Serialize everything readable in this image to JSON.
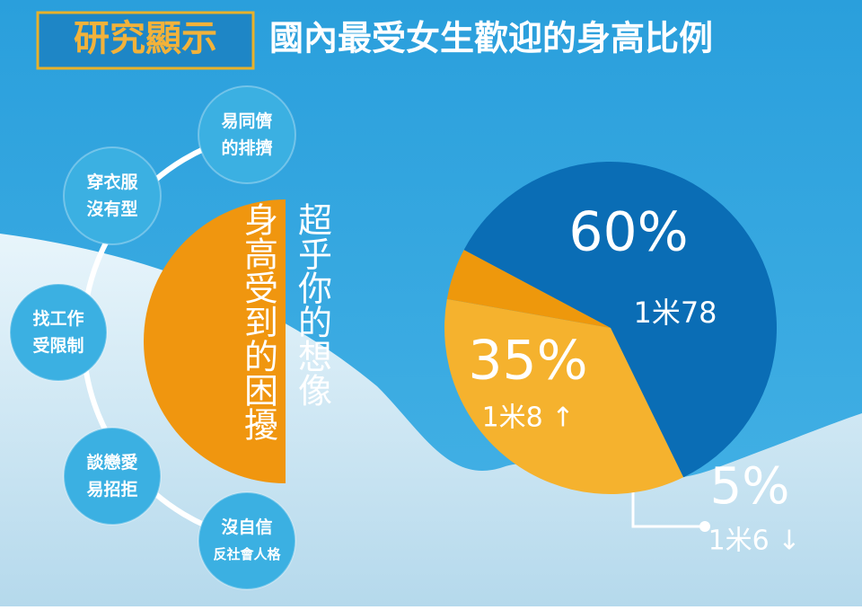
{
  "header": {
    "badge": "研究顯示",
    "title": "國內最受女生歡迎的身高比例"
  },
  "bubbles": [
    [
      "易同儕",
      "的排擠"
    ],
    [
      "穿衣服",
      "沒有型"
    ],
    [
      "找工作",
      "受限制"
    ],
    [
      "談戀愛",
      "易招拒"
    ],
    [
      "沒自信",
      "反社會人格"
    ]
  ],
  "center_text": "身高受到的困擾",
  "side_text": "超乎你的想像",
  "chart_data": {
    "type": "pie",
    "categories": [
      "1米78",
      "1米8 ↑",
      "1米6 ↓"
    ],
    "values": [
      60,
      35,
      5
    ],
    "value_labels": [
      "60%",
      "35%",
      "5%"
    ],
    "colors": [
      "#0a6db5",
      "#f5b22e",
      "#ee980c"
    ]
  }
}
